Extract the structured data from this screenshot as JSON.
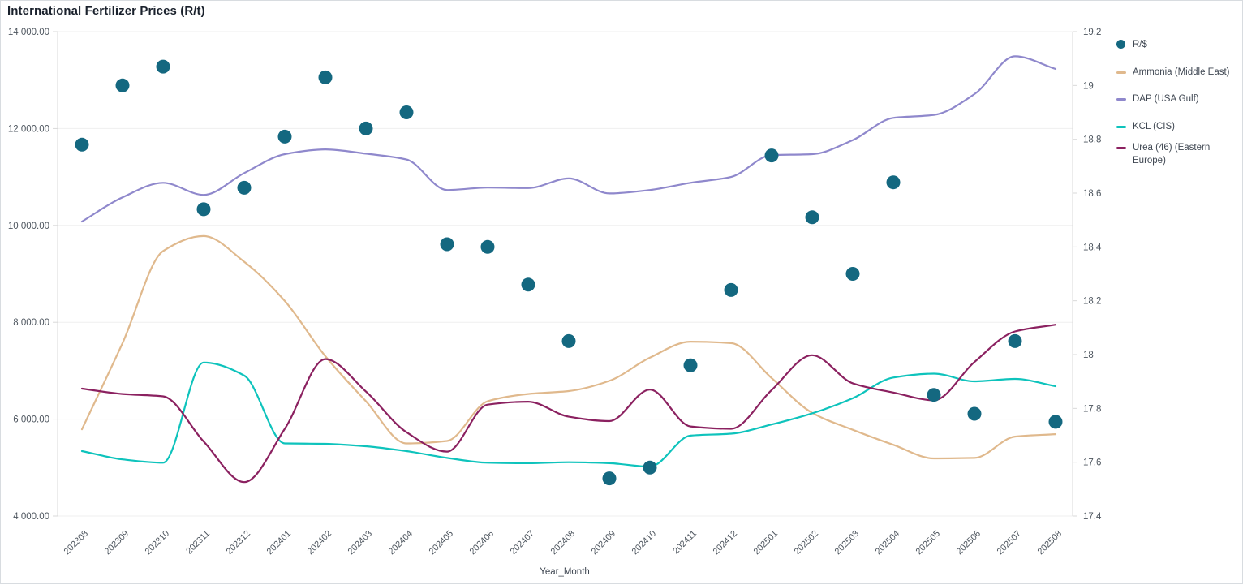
{
  "header": {
    "title": "International Fertilizer Prices (R/t)"
  },
  "axis_title": "Year_Month",
  "chart_data": {
    "type": "line+scatter",
    "title": "International Fertilizer Prices (R/t)",
    "xlabel": "Year_Month",
    "legend_position": "right",
    "grid": "horizontal",
    "x_categories": [
      "202308",
      "202309",
      "202310",
      "202311",
      "202312",
      "202401",
      "202402",
      "202403",
      "202404",
      "202405",
      "202406",
      "202407",
      "202408",
      "202409",
      "202410",
      "202411",
      "202412",
      "202501",
      "202502",
      "202503",
      "202504",
      "202505",
      "202506",
      "202507",
      "202508"
    ],
    "left_axis": {
      "min": 4000,
      "max": 14000,
      "tick_values": [
        14000,
        12000,
        10000,
        8000,
        6000,
        4000
      ],
      "tick_labels": [
        "14 000.00",
        "12 000.00",
        "10 000.00",
        "8 000.00",
        "6 000.00",
        "4 000.00"
      ]
    },
    "right_axis": {
      "min": 17.4,
      "max": 19.2,
      "tick_values": [
        19.2,
        19,
        18.8,
        18.6,
        18.4,
        18.2,
        18,
        17.8,
        17.6,
        17.4
      ],
      "tick_labels": [
        "19.2",
        "19",
        "18.8",
        "18.6",
        "18.4",
        "18.2",
        "18",
        "17.8",
        "17.6",
        "17.4"
      ]
    },
    "series": [
      {
        "name": "R/$",
        "type": "scatter",
        "axis": "right",
        "color": "#146880",
        "values": [
          18.78,
          19.0,
          19.07,
          18.54,
          18.62,
          18.81,
          19.03,
          18.84,
          18.9,
          18.41,
          18.4,
          18.26,
          18.05,
          17.54,
          17.58,
          17.96,
          18.24,
          18.74,
          18.51,
          18.3,
          18.64,
          17.85,
          17.78,
          18.05,
          17.75
        ]
      },
      {
        "name": "Ammonia (Middle East)",
        "type": "line",
        "axis": "left",
        "color": "#e0b98d",
        "values": [
          5790,
          7570,
          9470,
          9780,
          9250,
          8440,
          7300,
          6370,
          5500,
          5550,
          6370,
          6520,
          6580,
          6790,
          7270,
          7600,
          7570,
          6850,
          6130,
          5780,
          5470,
          5190,
          5200,
          5640,
          5690
        ]
      },
      {
        "name": "DAP (USA Gulf)",
        "type": "line",
        "axis": "left",
        "color": "#8f88cc",
        "values": [
          10080,
          10580,
          10880,
          10630,
          11080,
          11470,
          11570,
          11480,
          11360,
          10730,
          10780,
          10770,
          10970,
          10660,
          10730,
          10880,
          11000,
          11450,
          11470,
          11760,
          12220,
          12280,
          12710,
          13490,
          13230
        ]
      },
      {
        "name": "KCL (CIS)",
        "type": "line",
        "axis": "left",
        "color": "#0ec3bc",
        "values": [
          5340,
          5170,
          5100,
          7170,
          6900,
          5500,
          5490,
          5440,
          5340,
          5200,
          5100,
          5090,
          5110,
          5090,
          5020,
          5660,
          5700,
          5890,
          6120,
          6430,
          6860,
          6940,
          6780,
          6830,
          6680
        ]
      },
      {
        "name": "Urea (46) (Eastern Europe)",
        "type": "line",
        "axis": "left",
        "color": "#8b2160",
        "values": [
          6630,
          6520,
          6470,
          5540,
          4700,
          5800,
          7240,
          6570,
          5730,
          5330,
          6300,
          6360,
          6050,
          5960,
          6610,
          5850,
          5800,
          6600,
          7320,
          6740,
          6550,
          6390,
          7180,
          7810,
          7950
        ]
      }
    ]
  },
  "style": {
    "grid_color": "#efefef",
    "axis_line_color": "#d9d9d9",
    "tick_text_color": "#4e565f",
    "title_color": "#1a212c"
  }
}
